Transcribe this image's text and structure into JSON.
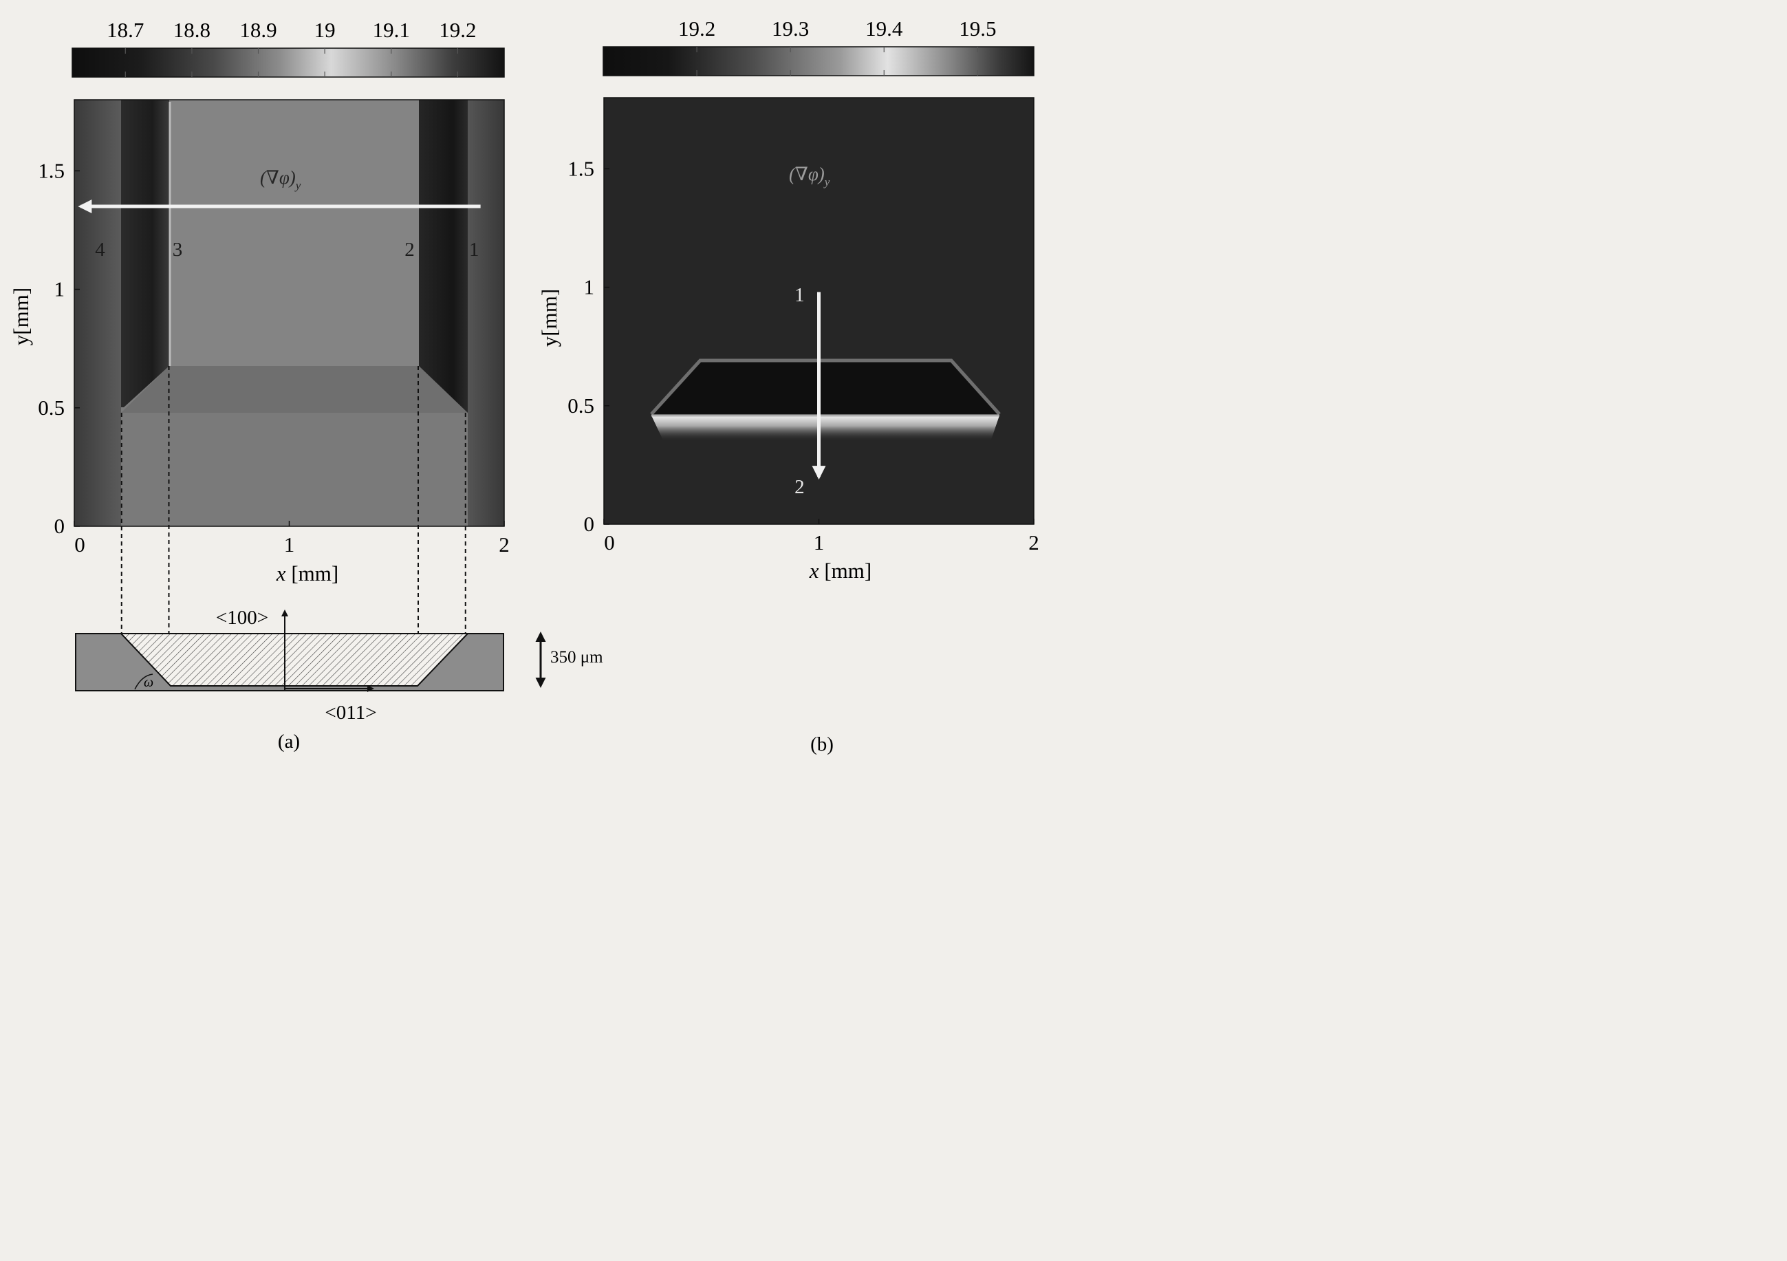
{
  "chart_data": [
    {
      "panel_label": "(a)",
      "type": "heatmap",
      "quantity_label": "(∇φ)",
      "quantity_subscript": "y",
      "xlabel_var": "x",
      "xlabel_unit": "[mm]",
      "ylabel": "y[mm]",
      "xlim": [
        0,
        2
      ],
      "ylim": [
        0,
        1.8
      ],
      "xticks": [
        {
          "value": 0,
          "label": "0"
        },
        {
          "value": 1,
          "label": "1"
        },
        {
          "value": 2,
          "label": "2"
        }
      ],
      "yticks": [
        {
          "value": 0,
          "label": "0"
        },
        {
          "value": 0.5,
          "label": "0.5"
        },
        {
          "value": 1,
          "label": "1"
        },
        {
          "value": 1.5,
          "label": "1.5"
        }
      ],
      "colorbar": {
        "min": 18.62,
        "max": 19.27,
        "ticks": [
          {
            "value": 18.7,
            "label": "18.7"
          },
          {
            "value": 18.8,
            "label": "18.8"
          },
          {
            "value": 18.9,
            "label": "18.9"
          },
          {
            "value": 19.0,
            "label": "19"
          },
          {
            "value": 19.1,
            "label": "19.1"
          },
          {
            "value": 19.2,
            "label": "19.2"
          }
        ]
      },
      "background_value": 18.98,
      "regions": [
        {
          "name": "bottom-band",
          "x": [
            0,
            2
          ],
          "y": [
            0,
            0.5
          ],
          "value": 18.98
        },
        {
          "name": "left-wall",
          "x": [
            0.22,
            0.44
          ],
          "y": [
            0.52,
            1.8
          ],
          "value": 18.7
        },
        {
          "name": "right-wall",
          "x": [
            1.6,
            1.82
          ],
          "y": [
            0.52,
            1.8
          ],
          "value": 18.7
        },
        {
          "name": "groove-floor",
          "x": [
            0.44,
            1.6
          ],
          "y": [
            0.7,
            1.8
          ],
          "value": 18.97
        }
      ],
      "scan_arrow": {
        "from": [
          1.89,
          1.35
        ],
        "to": [
          0.03,
          1.35
        ]
      },
      "point_labels": [
        {
          "text": "4",
          "x": 0.12,
          "y": 1.17
        },
        {
          "text": "3",
          "x": 0.48,
          "y": 1.17
        },
        {
          "text": "2",
          "x": 1.56,
          "y": 1.17
        },
        {
          "text": "1",
          "x": 1.86,
          "y": 1.17
        }
      ],
      "cross_section": {
        "label_normal": "<100>",
        "label_inplane": "<011>",
        "angle_symbol": "ω",
        "depth_label": "350 μm",
        "edge_positions": [
          0.22,
          0.44,
          1.6,
          1.82
        ]
      }
    },
    {
      "panel_label": "(b)",
      "type": "heatmap",
      "quantity_label": "(∇φ)",
      "quantity_subscript": "y",
      "xlabel_var": "x",
      "xlabel_unit": "[mm]",
      "ylabel": "y[mm]",
      "xlim": [
        0,
        2
      ],
      "ylim": [
        0,
        1.8
      ],
      "xticks": [
        {
          "value": 0,
          "label": "0"
        },
        {
          "value": 1,
          "label": "1"
        },
        {
          "value": 2,
          "label": "2"
        }
      ],
      "yticks": [
        {
          "value": 0,
          "label": "0"
        },
        {
          "value": 0.5,
          "label": "0.5"
        },
        {
          "value": 1,
          "label": "1"
        },
        {
          "value": 1.5,
          "label": "1.5"
        }
      ],
      "colorbar": {
        "min": 19.1,
        "max": 19.56,
        "ticks": [
          {
            "value": 19.2,
            "label": "19.2"
          },
          {
            "value": 19.3,
            "label": "19.3"
          },
          {
            "value": 19.4,
            "label": "19.4"
          },
          {
            "value": 19.5,
            "label": "19.5"
          }
        ]
      },
      "background_value": 19.2,
      "regions": [
        {
          "name": "trapezoid-floor",
          "x": [
            0.45,
            1.55
          ],
          "y": [
            0.5,
            0.7
          ],
          "value": 19.15
        },
        {
          "name": "bright-edge",
          "x": [
            0.23,
            1.83
          ],
          "y": [
            0.38,
            0.5
          ],
          "value": 19.45
        }
      ],
      "trapezoid": {
        "top": [
          0.45,
          1.62
        ],
        "bottom": [
          0.22,
          1.83
        ],
        "y_top": 0.7,
        "y_bottom": 0.5
      },
      "scan_arrow": {
        "from": [
          1.0,
          0.98
        ],
        "to": [
          1.0,
          0.2
        ]
      },
      "point_labels": [
        {
          "text": "1",
          "x": 0.91,
          "y": 0.97
        },
        {
          "text": "2",
          "x": 0.91,
          "y": 0.16
        }
      ]
    }
  ]
}
